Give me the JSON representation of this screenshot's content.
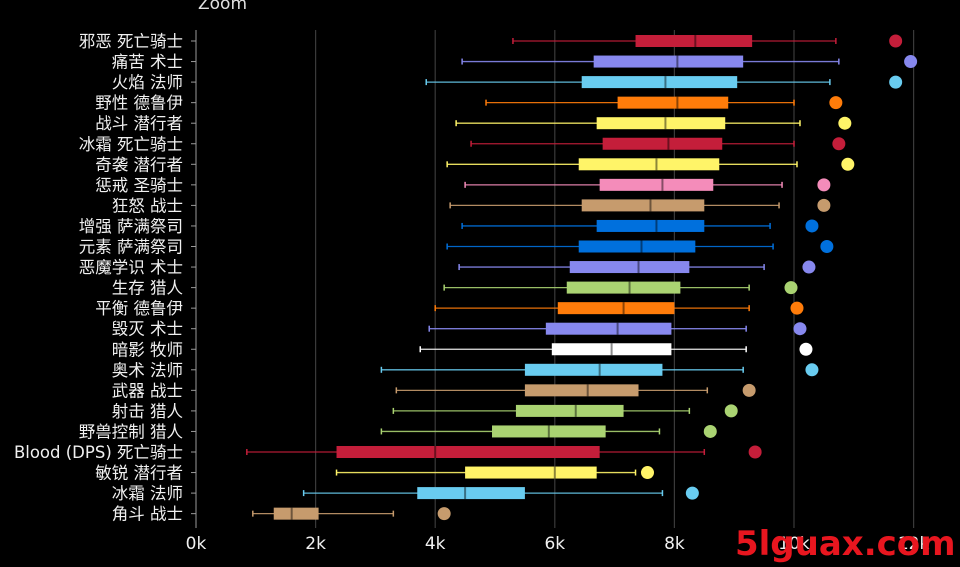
{
  "zoom_label": "Zoom",
  "watermark": "5lguax.com",
  "chart_data": {
    "type": "boxplot",
    "xlim": [
      0,
      12000
    ],
    "x_ticks": [
      0,
      2000,
      4000,
      6000,
      8000,
      10000,
      12000
    ],
    "x_tick_labels": [
      "0k",
      "2k",
      "4k",
      "6k",
      "8k",
      "10k",
      "12k"
    ],
    "grid": true,
    "categories": [
      {
        "label": "邪恶 死亡骑士",
        "color": "#C41E3A",
        "whisker_low": 5300,
        "q1": 7350,
        "median": 8350,
        "q3": 9300,
        "whisker_high": 10700,
        "outlier": 11700
      },
      {
        "label": "痛苦 术士",
        "color": "#8788EE",
        "whisker_low": 4450,
        "q1": 6650,
        "median": 8050,
        "q3": 9150,
        "whisker_high": 10750,
        "outlier": 11950
      },
      {
        "label": "火焰 法师",
        "color": "#69CCF0",
        "whisker_low": 3850,
        "q1": 6450,
        "median": 7850,
        "q3": 9050,
        "whisker_high": 10600,
        "outlier": 11700
      },
      {
        "label": "野性 德鲁伊",
        "color": "#FF7C0A",
        "whisker_low": 4850,
        "q1": 7050,
        "median": 8050,
        "q3": 8900,
        "whisker_high": 10000,
        "outlier": 10700
      },
      {
        "label": "战斗 潜行者",
        "color": "#FFF468",
        "whisker_low": 4350,
        "q1": 6700,
        "median": 7850,
        "q3": 8850,
        "whisker_high": 10100,
        "outlier": 10850
      },
      {
        "label": "冰霜 死亡骑士",
        "color": "#C41E3A",
        "whisker_low": 4600,
        "q1": 6800,
        "median": 7900,
        "q3": 8800,
        "whisker_high": 10000,
        "outlier": 10750
      },
      {
        "label": "奇袭 潜行者",
        "color": "#FFF468",
        "whisker_low": 4200,
        "q1": 6400,
        "median": 7700,
        "q3": 8750,
        "whisker_high": 10050,
        "outlier": 10900
      },
      {
        "label": "惩戒 圣骑士",
        "color": "#F48CBA",
        "whisker_low": 4500,
        "q1": 6750,
        "median": 7800,
        "q3": 8650,
        "whisker_high": 9800,
        "outlier": 10500
      },
      {
        "label": "狂怒 战士",
        "color": "#C69B6D",
        "whisker_low": 4250,
        "q1": 6450,
        "median": 7600,
        "q3": 8500,
        "whisker_high": 9750,
        "outlier": 10500
      },
      {
        "label": "增强 萨满祭司",
        "color": "#0070DD",
        "whisker_low": 4450,
        "q1": 6700,
        "median": 7700,
        "q3": 8500,
        "whisker_high": 9600,
        "outlier": 10300
      },
      {
        "label": "元素 萨满祭司",
        "color": "#0070DD",
        "whisker_low": 4200,
        "q1": 6400,
        "median": 7450,
        "q3": 8350,
        "whisker_high": 9650,
        "outlier": 10550
      },
      {
        "label": "恶魔学识 术士",
        "color": "#8788EE",
        "whisker_low": 4400,
        "q1": 6250,
        "median": 7400,
        "q3": 8250,
        "whisker_high": 9500,
        "outlier": 10250
      },
      {
        "label": "生存 猎人",
        "color": "#AAD372",
        "whisker_low": 4150,
        "q1": 6200,
        "median": 7250,
        "q3": 8100,
        "whisker_high": 9250,
        "outlier": 9950
      },
      {
        "label": "平衡 德鲁伊",
        "color": "#FF7C0A",
        "whisker_low": 4000,
        "q1": 6050,
        "median": 7150,
        "q3": 8000,
        "whisker_high": 9250,
        "outlier": 10050
      },
      {
        "label": "毁灭 术士",
        "color": "#8788EE",
        "whisker_low": 3900,
        "q1": 5850,
        "median": 7050,
        "q3": 7950,
        "whisker_high": 9200,
        "outlier": 10100
      },
      {
        "label": "暗影 牧师",
        "color": "#FFFFFF",
        "whisker_low": 3750,
        "q1": 5950,
        "median": 6950,
        "q3": 7950,
        "whisker_high": 9200,
        "outlier": 10200
      },
      {
        "label": "奥术 法师",
        "color": "#69CCF0",
        "whisker_low": 3100,
        "q1": 5500,
        "median": 6750,
        "q3": 7800,
        "whisker_high": 9150,
        "outlier": 10300
      },
      {
        "label": "武器 战士",
        "color": "#C69B6D",
        "whisker_low": 3350,
        "q1": 5500,
        "median": 6550,
        "q3": 7400,
        "whisker_high": 8550,
        "outlier": 9250
      },
      {
        "label": "射击 猎人",
        "color": "#AAD372",
        "whisker_low": 3300,
        "q1": 5350,
        "median": 6350,
        "q3": 7150,
        "whisker_high": 8250,
        "outlier": 8950
      },
      {
        "label": "野兽控制 猎人",
        "color": "#AAD372",
        "whisker_low": 3100,
        "q1": 4950,
        "median": 5900,
        "q3": 6850,
        "whisker_high": 7750,
        "outlier": 8600
      },
      {
        "label": "Blood (DPS) 死亡骑士",
        "color": "#C41E3A",
        "whisker_low": 850,
        "q1": 2350,
        "median": 4000,
        "q3": 6750,
        "whisker_high": 8500,
        "outlier": 9350
      },
      {
        "label": "敏锐 潜行者",
        "color": "#FFF468",
        "whisker_low": 2350,
        "q1": 4500,
        "median": 6000,
        "q3": 6700,
        "whisker_high": 7350,
        "outlier": 7550
      },
      {
        "label": "冰霜 法师",
        "color": "#69CCF0",
        "whisker_low": 1800,
        "q1": 3700,
        "median": 4500,
        "q3": 5500,
        "whisker_high": 7800,
        "outlier": 8300
      },
      {
        "label": "角斗 战士",
        "color": "#C69B6D",
        "whisker_low": 950,
        "q1": 1300,
        "median": 1600,
        "q3": 2050,
        "whisker_high": 3300,
        "outlier": 4150
      }
    ]
  }
}
